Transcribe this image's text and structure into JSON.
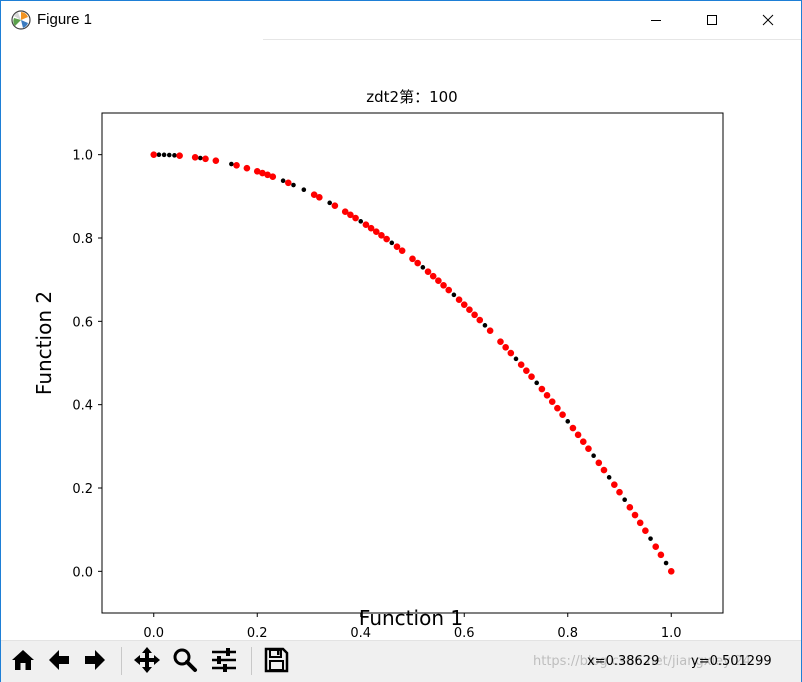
{
  "window": {
    "title": "Figure 1",
    "border_color": "#1e7fd6"
  },
  "icons": {
    "app": "matplotlib-icon",
    "minimize": "minimize-icon",
    "maximize": "maximize-icon",
    "close": "close-icon"
  },
  "toolbar": {
    "buttons": [
      "home-icon",
      "back-arrow-icon",
      "forward-arrow-icon",
      "pan-icon",
      "zoom-icon",
      "configure-subplots-icon",
      "save-icon"
    ],
    "coord_x": "x=0.38629",
    "coord_y": "y=0.501299",
    "watermark": "https://blog.csdn.net/jiangxieyi24"
  },
  "chart_data": {
    "type": "scatter",
    "title": "zdt2第：100",
    "xlabel": "Function 1",
    "ylabel": "Function 2",
    "xlim": [
      -0.1,
      1.1
    ],
    "ylim": [
      -0.1,
      1.1
    ],
    "xticks": [
      "0.0",
      "0.2",
      "0.4",
      "0.6",
      "0.8",
      "1.0"
    ],
    "yticks": [
      "0.0",
      "0.2",
      "0.4",
      "0.6",
      "0.8",
      "1.0"
    ],
    "xtick_values": [
      0.0,
      0.2,
      0.4,
      0.6,
      0.8,
      1.0
    ],
    "ytick_values": [
      0.0,
      0.2,
      0.4,
      0.6,
      0.8,
      1.0
    ],
    "grid": false,
    "series": [
      {
        "color": "#000000",
        "x": [
          0.01,
          0.02,
          0.03,
          0.04,
          0.09,
          0.15,
          0.2,
          0.25,
          0.27,
          0.29,
          0.34,
          0.4,
          0.46,
          0.52,
          0.58,
          0.64,
          0.7,
          0.74,
          0.8,
          0.85,
          0.88,
          0.91,
          0.96,
          0.99
        ],
        "y": [
          0.9999,
          0.9996,
          0.9991,
          0.9984,
          0.9919,
          0.9775,
          0.96,
          0.9375,
          0.9271,
          0.9159,
          0.8844,
          0.84,
          0.7884,
          0.7296,
          0.6636,
          0.5904,
          0.51,
          0.4524,
          0.36,
          0.2775,
          0.2256,
          0.1719,
          0.0784,
          0.0199
        ]
      },
      {
        "color": "#ff0000",
        "x": [
          0.0,
          0.05,
          0.08,
          0.1,
          0.12,
          0.16,
          0.18,
          0.2,
          0.21,
          0.22,
          0.23,
          0.26,
          0.31,
          0.32,
          0.35,
          0.37,
          0.38,
          0.39,
          0.41,
          0.42,
          0.43,
          0.44,
          0.45,
          0.47,
          0.48,
          0.5,
          0.51,
          0.53,
          0.54,
          0.55,
          0.56,
          0.57,
          0.59,
          0.6,
          0.61,
          0.62,
          0.63,
          0.65,
          0.67,
          0.68,
          0.69,
          0.71,
          0.72,
          0.73,
          0.75,
          0.76,
          0.77,
          0.78,
          0.79,
          0.81,
          0.82,
          0.83,
          0.84,
          0.86,
          0.87,
          0.89,
          0.9,
          0.92,
          0.93,
          0.94,
          0.95,
          0.97,
          0.98,
          1.0
        ],
        "y": [
          1.0,
          0.9975,
          0.9936,
          0.99,
          0.9856,
          0.9744,
          0.9676,
          0.96,
          0.9559,
          0.9516,
          0.9471,
          0.9324,
          0.9039,
          0.8976,
          0.8775,
          0.8631,
          0.8556,
          0.8479,
          0.8319,
          0.8236,
          0.8151,
          0.8064,
          0.7975,
          0.7791,
          0.7696,
          0.75,
          0.7399,
          0.7191,
          0.7084,
          0.6975,
          0.6864,
          0.6751,
          0.6519,
          0.64,
          0.6279,
          0.6156,
          0.6031,
          0.5775,
          0.5511,
          0.5376,
          0.5239,
          0.4959,
          0.4816,
          0.4671,
          0.4375,
          0.4224,
          0.4071,
          0.3916,
          0.3759,
          0.3439,
          0.3276,
          0.3111,
          0.2944,
          0.2604,
          0.2431,
          0.2079,
          0.19,
          0.1536,
          0.1351,
          0.1164,
          0.0975,
          0.0591,
          0.0396,
          0.0
        ]
      }
    ]
  }
}
